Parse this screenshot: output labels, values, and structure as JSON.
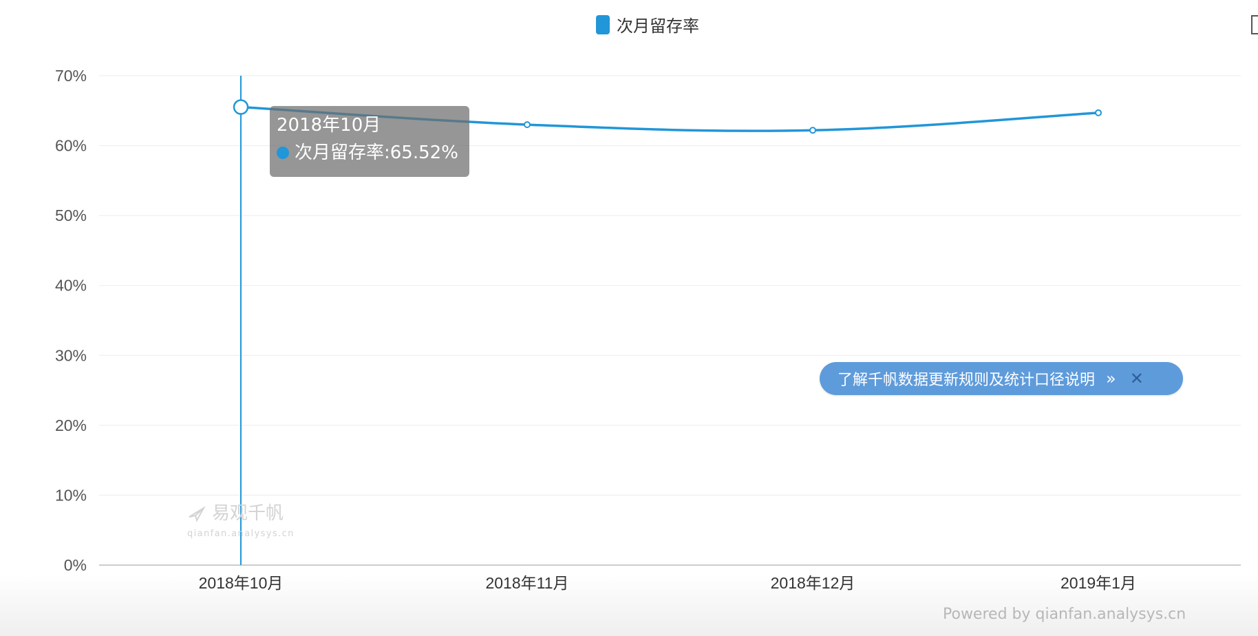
{
  "chart_data": {
    "type": "line",
    "categories": [
      "2018年10月",
      "2018年11月",
      "2018年12月",
      "2019年1月"
    ],
    "series": [
      {
        "name": "次月留存率",
        "values": [
          65.52,
          63.0,
          62.2,
          64.7
        ],
        "color": "#2196d8"
      }
    ],
    "ylim": [
      0,
      70
    ],
    "yticks": [
      "0%",
      "10%",
      "20%",
      "30%",
      "40%",
      "50%",
      "60%",
      "70%"
    ],
    "grid": true,
    "legend": "top-center"
  },
  "tooltip": {
    "title": "2018年10月",
    "label": "次月留存率:65.52%"
  },
  "banner": {
    "text": "了解千帆数据更新规则及统计口径说明",
    "chevron": "»",
    "close": "✕"
  },
  "watermark": {
    "name": "易观千帆",
    "site": "qianfan.analysys.cn"
  },
  "footer": {
    "powered_by": "Powered by qianfan.analysys.cn"
  },
  "colors": {
    "accent": "#2196d8",
    "grid": "#ebebeb",
    "axis": "#cccccc",
    "text": "#333333",
    "banner": "#5e9bdb",
    "tooltip_bg": "#6e6e6e"
  }
}
